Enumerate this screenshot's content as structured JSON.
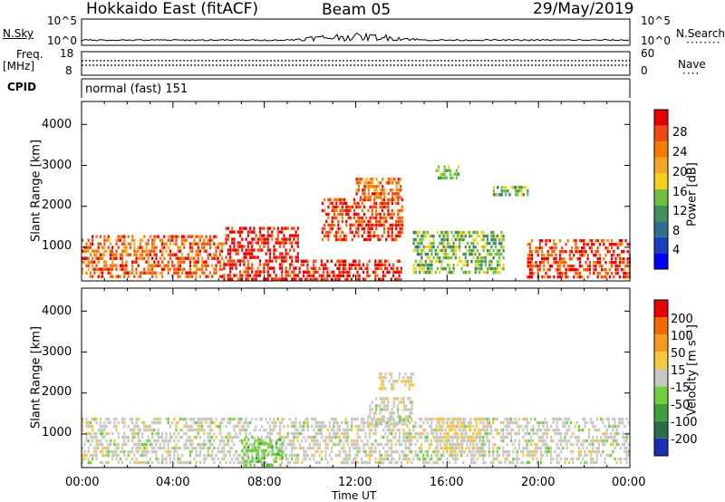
{
  "header": {
    "title": "Hokkaido East (fitACF)",
    "beam": "Beam 05",
    "date": "29/May/2019"
  },
  "aux": {
    "nsky_label": "N.Sky",
    "nsky_ticks": [
      "10^5",
      "10^0"
    ],
    "nsearch_label": "N.Search",
    "nsearch_ticks": [
      "10^5",
      "10^0"
    ],
    "freq_label_line1": "Freq.",
    "freq_label_line2": "[MHz]",
    "freq_ticks": [
      "18",
      "8"
    ],
    "nave_label": "Nave",
    "nave_ticks": [
      "60",
      "0"
    ],
    "cpid_label": "CPID",
    "cpid_text": "normal (fast) 151"
  },
  "panels": {
    "power": {
      "ylabel": "Slant Range [km]",
      "yticks": [
        "4000",
        "3000",
        "2000",
        "1000"
      ],
      "colorbar_label": "Power [dB]",
      "colorbar_ticks": [
        "28",
        "24",
        "20",
        "16",
        "12",
        "8",
        "4"
      ],
      "colors": [
        "#0000ff",
        "#1c3fbf",
        "#2e6e8a",
        "#3f8f5a",
        "#6fbf3f",
        "#f5d21e",
        "#f5a623",
        "#f57c00",
        "#f04a10",
        "#e80000"
      ]
    },
    "velocity": {
      "ylabel": "Slant Range [km]",
      "yticks": [
        "4000",
        "3000",
        "2000",
        "1000"
      ],
      "colorbar_label": "Velocity [m s⁻¹]",
      "colorbar_ticks": [
        "200",
        "100",
        "50",
        "15",
        "-15",
        "-50",
        "-100",
        "-200"
      ],
      "colors": [
        "#1a2fb4",
        "#2c6e4a",
        "#3f9f3f",
        "#6fcf3f",
        "#c8c8c0",
        "#f5c842",
        "#f59a1e",
        "#f56a00",
        "#e80000"
      ]
    }
  },
  "xaxis": {
    "ticks": [
      "00:00",
      "04:00",
      "08:00",
      "12:00",
      "16:00",
      "20:00",
      "00:00"
    ],
    "label": "Time UT"
  },
  "chart_data": [
    {
      "type": "heatmap",
      "name": "",
      "title": "Beam 05",
      "xlabel": "Time UT",
      "ylabel": "Slant Range [km]",
      "x_range_hours": [
        0,
        24
      ],
      "ylim": [
        180,
        4560
      ],
      "colorbar": {
        "label": "Power [dB]",
        "range": [
          0,
          32
        ]
      },
      "regions": [
        {
          "t0": 0.0,
          "t1": 6.2,
          "r0": 300,
          "r1": 1300,
          "value": 26
        },
        {
          "t0": 6.2,
          "t1": 9.5,
          "r0": 250,
          "r1": 1500,
          "value": 30
        },
        {
          "t0": 9.5,
          "t1": 14.0,
          "r0": 250,
          "r1": 700,
          "value": 30
        },
        {
          "t0": 10.5,
          "t1": 14.0,
          "r0": 1200,
          "r1": 2200,
          "value": 28
        },
        {
          "t0": 12.0,
          "t1": 14.0,
          "r0": 2200,
          "r1": 2700,
          "value": 25
        },
        {
          "t0": 14.5,
          "t1": 18.5,
          "r0": 400,
          "r1": 1400,
          "value": 14
        },
        {
          "t0": 15.5,
          "t1": 16.5,
          "r0": 2700,
          "r1": 3000,
          "value": 14
        },
        {
          "t0": 18.0,
          "t1": 19.5,
          "r0": 2300,
          "r1": 2500,
          "value": 14
        },
        {
          "t0": 19.5,
          "t1": 24.0,
          "r0": 300,
          "r1": 1200,
          "value": 28
        }
      ]
    },
    {
      "type": "heatmap",
      "title": "Beam 05",
      "xlabel": "Time UT",
      "ylabel": "Slant Range [km]",
      "x_range_hours": [
        0,
        24
      ],
      "ylim": [
        180,
        4560
      ],
      "colorbar": {
        "label": "Velocity [m s⁻¹]",
        "range": [
          -250,
          250
        ]
      },
      "regions": [
        {
          "t0": 0.0,
          "t1": 24.0,
          "r0": 250,
          "r1": 1400,
          "value": 0
        },
        {
          "t0": 7.0,
          "t1": 8.8,
          "r0": 250,
          "r1": 900,
          "value": -60
        },
        {
          "t0": 12.5,
          "t1": 14.5,
          "r0": 1200,
          "r1": 1900,
          "value": 0
        },
        {
          "t0": 13.0,
          "t1": 14.5,
          "r0": 2100,
          "r1": 2500,
          "value": 30
        },
        {
          "t0": 15.5,
          "t1": 17.5,
          "r0": 600,
          "r1": 1400,
          "value": 30
        }
      ]
    }
  ]
}
